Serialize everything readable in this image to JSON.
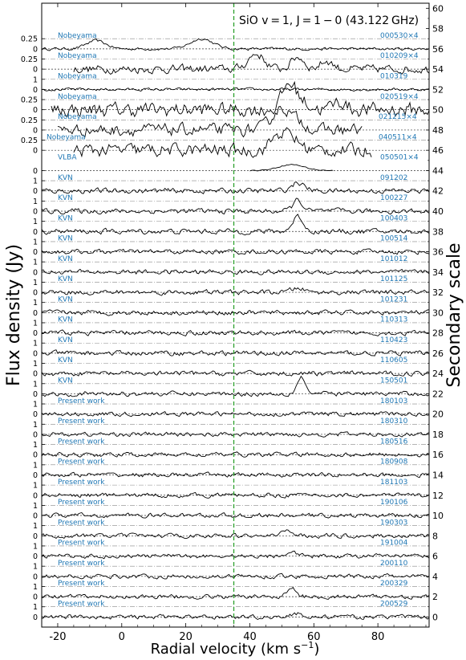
{
  "chart_data": {
    "type": "line",
    "title": "SiO v = 1, J = 1 − 0 (43.122 GHz)",
    "xlabel": "Radial velocity (km s",
    "xlabel_sup": "−1",
    "xlabel_close": ")",
    "ylabel": "Flux density (Jy)",
    "ylabel_right": "Secondary scale",
    "xlim": [
      -25,
      96
    ],
    "xticks": [
      -20,
      0,
      20,
      40,
      60,
      80
    ],
    "right_ylim": [
      -1,
      60.5
    ],
    "right_yticks": [
      0,
      2,
      4,
      6,
      8,
      10,
      12,
      14,
      16,
      18,
      20,
      22,
      24,
      26,
      28,
      30,
      32,
      34,
      36,
      38,
      40,
      42,
      44,
      46,
      48,
      50,
      52,
      54,
      56,
      58,
      60
    ],
    "systemic_velocity": 35,
    "colors": {
      "annotation": "#1f77b4",
      "systemic_line": "#2ca02c",
      "spectrum": "#000000"
    },
    "series": [
      {
        "label": "Nobeyama",
        "date": "000530×4",
        "offset": 56,
        "tick_top": "0.25",
        "tick_bottom": "0",
        "range": [
          -25,
          96
        ],
        "features": [
          [
            -8,
            0.8,
            3
          ],
          [
            25,
            1.0,
            3.5
          ]
        ],
        "noise": 0.12
      },
      {
        "label": "Nobeyama",
        "date": "010209×4",
        "offset": 54,
        "tick_top": "0.25",
        "tick_bottom": "0",
        "range": [
          -15,
          96
        ],
        "features": [
          [
            42,
            1.5,
            2.5
          ],
          [
            55,
            1.2,
            2
          ],
          [
            64,
            0.8,
            2
          ]
        ],
        "noise": 0.35
      },
      {
        "label": "Nobeyama",
        "date": "010319",
        "offset": 52,
        "tick_top": "1",
        "tick_bottom": "0",
        "range": [
          -25,
          96
        ],
        "features": [],
        "noise": 0.12
      },
      {
        "label": "Nobeyama",
        "date": "020519×4",
        "offset": 50,
        "tick_top": "0.25",
        "tick_bottom": "0",
        "range": [
          -22,
          96
        ],
        "features": [
          [
            52,
            2.0,
            2
          ],
          [
            55,
            1.0,
            3
          ],
          [
            68,
            0.8,
            2
          ]
        ],
        "noise": 0.6
      },
      {
        "label": "Nobeyama",
        "date": "021215×4",
        "offset": 48,
        "tick_top": "0.25",
        "tick_bottom": "0",
        "range": [
          -20,
          75
        ],
        "features": [
          [
            50,
            2.2,
            3
          ],
          [
            56,
            0.6,
            2
          ]
        ],
        "noise": 0.5
      },
      {
        "label": "Nobeyama",
        "date": "040511×4",
        "offset": 46,
        "tick_top": "0.25",
        "tick_bottom": "0",
        "range": [
          -15,
          78
        ],
        "features": [
          [
            52,
            1.5,
            3
          ],
          [
            48,
            0.8,
            2
          ]
        ],
        "noise": 0.55
      },
      {
        "label": "VLBA",
        "date": "050501×4",
        "offset": 44,
        "tick_top": "",
        "tick_bottom": "0",
        "range": [
          40,
          66
        ],
        "features": [
          [
            53,
            0.6,
            4
          ]
        ],
        "noise": 0.05
      },
      {
        "label": "KVN",
        "date": "091202",
        "offset": 42,
        "tick_top": "1",
        "tick_bottom": "0",
        "range": [
          -25,
          96
        ],
        "features": [
          [
            55,
            0.8,
            2
          ]
        ],
        "noise": 0.22
      },
      {
        "label": "KVN",
        "date": "100227",
        "offset": 40,
        "tick_top": "1",
        "tick_bottom": "0",
        "range": [
          -25,
          96
        ],
        "features": [
          [
            55,
            1.1,
            1.5
          ]
        ],
        "noise": 0.22
      },
      {
        "label": "KVN",
        "date": "100403",
        "offset": 38,
        "tick_top": "1",
        "tick_bottom": "0",
        "range": [
          -25,
          96
        ],
        "features": [
          [
            55,
            1.5,
            1.6
          ]
        ],
        "noise": 0.22
      },
      {
        "label": "KVN",
        "date": "100514",
        "offset": 36,
        "tick_top": "1",
        "tick_bottom": "0",
        "range": [
          -25,
          96
        ],
        "features": [],
        "noise": 0.2
      },
      {
        "label": "KVN",
        "date": "101012",
        "offset": 34,
        "tick_top": "1",
        "tick_bottom": "0",
        "range": [
          -25,
          96
        ],
        "features": [],
        "noise": 0.2
      },
      {
        "label": "KVN",
        "date": "101125",
        "offset": 32,
        "tick_top": "1",
        "tick_bottom": "0",
        "range": [
          -25,
          96
        ],
        "features": [
          [
            55,
            0.4,
            2
          ]
        ],
        "noise": 0.2
      },
      {
        "label": "KVN",
        "date": "101231",
        "offset": 30,
        "tick_top": "1",
        "tick_bottom": "0",
        "range": [
          -25,
          96
        ],
        "features": [],
        "noise": 0.2
      },
      {
        "label": "KVN",
        "date": "110313",
        "offset": 28,
        "tick_top": "1",
        "tick_bottom": "0",
        "range": [
          -25,
          96
        ],
        "features": [],
        "noise": 0.2
      },
      {
        "label": "KVN",
        "date": "110423",
        "offset": 26,
        "tick_top": "1",
        "tick_bottom": "0",
        "range": [
          -25,
          96
        ],
        "features": [],
        "noise": 0.2
      },
      {
        "label": "KVN",
        "date": "110605",
        "offset": 24,
        "tick_top": "1",
        "tick_bottom": "0",
        "range": [
          -25,
          96
        ],
        "features": [],
        "noise": 0.2
      },
      {
        "label": "KVN",
        "date": "150501",
        "offset": 22,
        "tick_top": "1",
        "tick_bottom": "0",
        "range": [
          -25,
          96
        ],
        "features": [
          [
            56,
            1.7,
            1.3
          ]
        ],
        "noise": 0.2
      },
      {
        "label": "Present work",
        "date": "180103",
        "offset": 20,
        "tick_top": "1",
        "tick_bottom": "0",
        "range": [
          -25,
          96
        ],
        "features": [],
        "noise": 0.18
      },
      {
        "label": "Present work",
        "date": "180310",
        "offset": 18,
        "tick_top": "1",
        "tick_bottom": "0",
        "range": [
          -25,
          96
        ],
        "features": [],
        "noise": 0.18
      },
      {
        "label": "Present work",
        "date": "180516",
        "offset": 16,
        "tick_top": "1",
        "tick_bottom": "0",
        "range": [
          -25,
          96
        ],
        "features": [],
        "noise": 0.18
      },
      {
        "label": "Present work",
        "date": "180908",
        "offset": 14,
        "tick_top": "1",
        "tick_bottom": "0",
        "range": [
          -25,
          96
        ],
        "features": [],
        "noise": 0.18
      },
      {
        "label": "Present work",
        "date": "181103",
        "offset": 12,
        "tick_top": "1",
        "tick_bottom": "0",
        "range": [
          -25,
          96
        ],
        "features": [],
        "noise": 0.18
      },
      {
        "label": "Present work",
        "date": "190106",
        "offset": 10,
        "tick_top": "1",
        "tick_bottom": "0",
        "range": [
          -25,
          96
        ],
        "features": [],
        "noise": 0.18
      },
      {
        "label": "Present work",
        "date": "190303",
        "offset": 8,
        "tick_top": "1",
        "tick_bottom": "0",
        "range": [
          -25,
          96
        ],
        "features": [
          [
            52,
            0.6,
            1.5
          ]
        ],
        "noise": 0.18
      },
      {
        "label": "Present work",
        "date": "191004",
        "offset": 6,
        "tick_top": "1",
        "tick_bottom": "0",
        "range": [
          -25,
          96
        ],
        "features": [
          [
            53,
            0.6,
            1.5
          ]
        ],
        "noise": 0.18
      },
      {
        "label": "Present work",
        "date": "200110",
        "offset": 4,
        "tick_top": "1",
        "tick_bottom": "0",
        "range": [
          -25,
          96
        ],
        "features": [],
        "noise": 0.18
      },
      {
        "label": "Present work",
        "date": "200329",
        "offset": 2,
        "tick_top": "1",
        "tick_bottom": "0",
        "range": [
          -25,
          96
        ],
        "features": [
          [
            53,
            0.8,
            1.5
          ]
        ],
        "noise": 0.18
      },
      {
        "label": "Present work",
        "date": "200529",
        "offset": 0,
        "tick_top": "1",
        "tick_bottom": "0",
        "range": [
          -25,
          96
        ],
        "features": [
          [
            55,
            0.3,
            2
          ]
        ],
        "noise": 0.18
      }
    ]
  }
}
